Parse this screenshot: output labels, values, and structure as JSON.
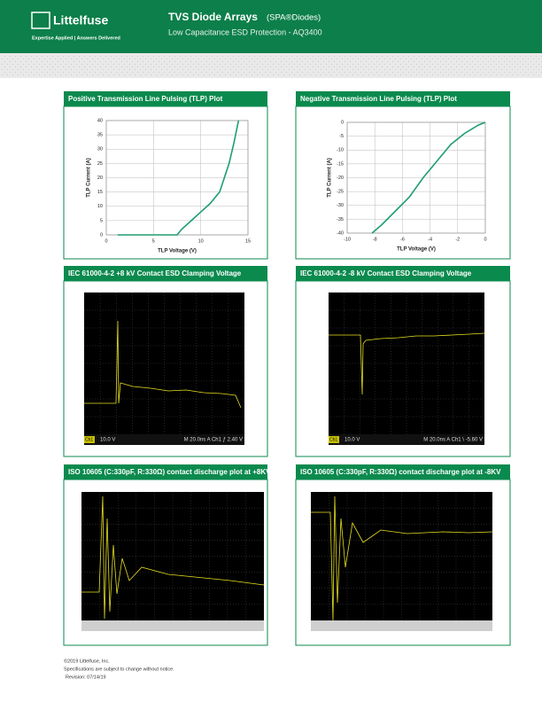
{
  "header": {
    "logo": "Littelfuse",
    "tagline": "Expertise Applied | Answers Delivered",
    "title": "TVS Diode Arrays",
    "title_suffix": "(SPA®Diodes)",
    "subtitle": "Low Capacitance ESD Protection - AQ3400"
  },
  "panels": [
    {
      "title": "Positive Transmission Line Pulsing (TLP) Plot"
    },
    {
      "title": "Negative Transmission Line Pulsing (TLP) Plot"
    },
    {
      "title": "IEC 61000-4-2 +8 kV Contact ESD Clamping Voltage",
      "scope": {
        "channel": "Ch1",
        "scale": "10.0 V",
        "status": "M 20.0ns  A  Ch1  ƒ  2.40 V"
      }
    },
    {
      "title": "IEC 61000-4-2 -8 kV Contact ESD Clamping Voltage",
      "scope": {
        "channel": "Ch1",
        "scale": "10.0 V",
        "status": "M 20.0ns  A  Ch1  \\  -5.60 V"
      }
    },
    {
      "title": "ISO 10605 (C:330pF, R:330Ω) contact discharge plot at +8KV"
    },
    {
      "title": "ISO 10605 (C:330pF, R:330Ω) contact discharge plot at -8KV"
    }
  ],
  "chart_data": [
    {
      "type": "line",
      "x_label": "TLP Voltage (V)",
      "y_label": "TLP Current (A)",
      "xlim": [
        0,
        15
      ],
      "xticks": [
        0,
        5,
        10,
        15
      ],
      "ylim": [
        0,
        40
      ],
      "yticks": [
        0,
        5,
        10,
        15,
        20,
        25,
        30,
        35,
        40
      ],
      "grid": true,
      "series": [
        {
          "color": "#1e9e6e",
          "x": [
            1.2,
            7.5,
            8,
            9,
            10,
            11,
            12,
            12.5,
            13,
            13.5,
            14
          ],
          "values": [
            0,
            0,
            2,
            5,
            8,
            11,
            15,
            20,
            25,
            32,
            40
          ]
        }
      ]
    },
    {
      "type": "line",
      "x_label": "TLP Voltage (V)",
      "y_label": "TLP Current (A)",
      "xlim": [
        -10,
        0
      ],
      "xticks": [
        -10,
        -8,
        -6,
        -4,
        -2,
        0
      ],
      "ylim": [
        -40,
        0
      ],
      "yticks": [
        0,
        -5,
        -10,
        -15,
        -20,
        -25,
        -30,
        -35,
        -40
      ],
      "grid": true,
      "series": [
        {
          "color": "#1e9e6e",
          "x": [
            -8.2,
            -7.5,
            -6.5,
            -5.5,
            -4.5,
            -3.5,
            -2.5,
            -1.5,
            -0.5,
            0
          ],
          "values": [
            -40,
            -37,
            -32,
            -27,
            -20,
            -14,
            -8,
            -4,
            -1,
            0
          ]
        }
      ]
    }
  ],
  "footer": {
    "copyright": "©2019 Littelfuse, Inc.",
    "notice": "Specifications are subject to change without notice.",
    "revision": "Revision: 07/14/19"
  }
}
